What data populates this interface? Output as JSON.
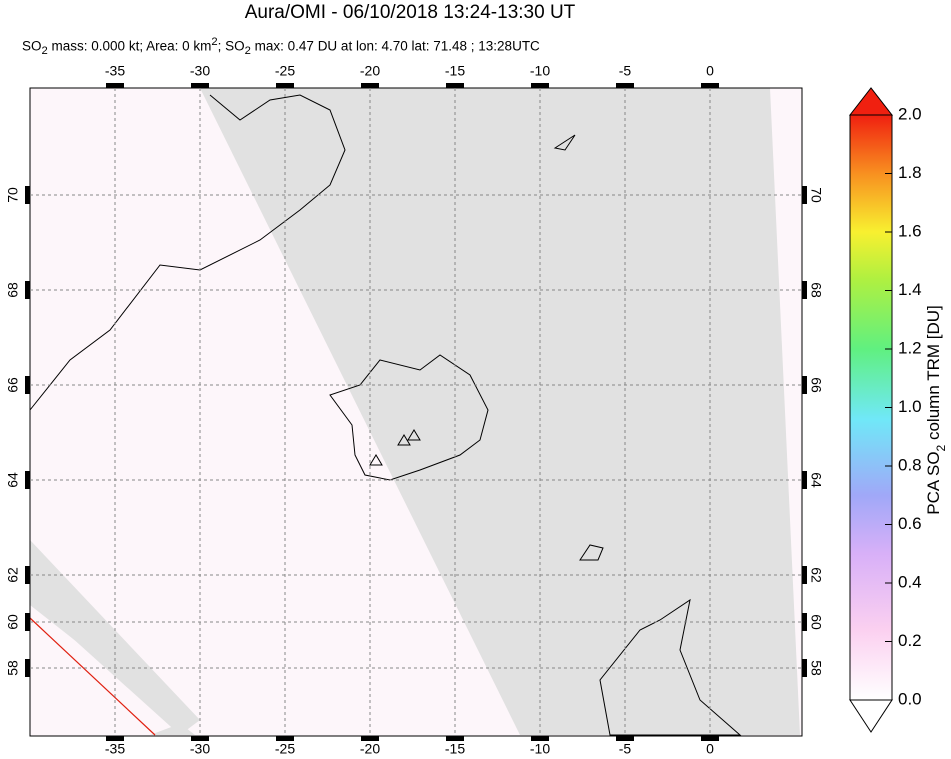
{
  "title": "Aura/OMI - 06/10/2018 13:24-13:30 UT",
  "subtitle": [
    "SO",
    "2",
    " mass: 0.000 kt; Area: 0 km",
    "2",
    "; SO",
    "2",
    " max: 0.47 DU at lon: 4.70 lat: 71.48 ; 13:28UTC"
  ],
  "map": {
    "lon_ticks": [
      -35,
      -30,
      -25,
      -20,
      -15,
      -10,
      -5,
      0
    ],
    "lat_ticks": [
      70,
      68,
      66,
      64,
      62,
      60,
      58
    ]
  },
  "colorbar": {
    "label": [
      "PCA SO",
      "2",
      " column TRM [DU]"
    ],
    "ticks": [
      {
        "value": 0,
        "label": "0.0"
      },
      0.2,
      0.4,
      0.6,
      0.8,
      {
        "value": 1,
        "label": "1.0"
      },
      1.2,
      1.4,
      1.6,
      1.8,
      {
        "value": 2,
        "label": "2.0"
      }
    ]
  }
}
